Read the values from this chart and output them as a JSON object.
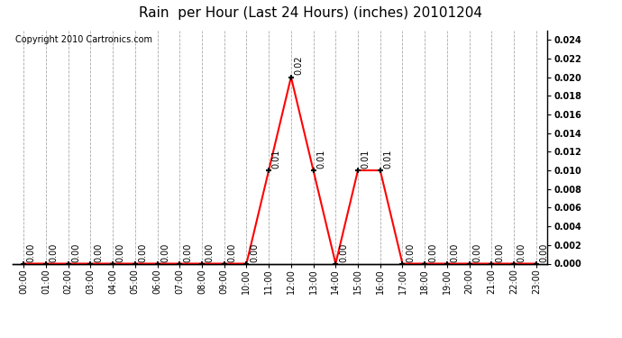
{
  "title": "Rain  per Hour (Last 24 Hours) (inches) 20101204",
  "copyright_text": "Copyright 2010 Cartronics.com",
  "hours": [
    0,
    1,
    2,
    3,
    4,
    5,
    6,
    7,
    8,
    9,
    10,
    11,
    12,
    13,
    14,
    15,
    16,
    17,
    18,
    19,
    20,
    21,
    22,
    23
  ],
  "values": [
    0.0,
    0.0,
    0.0,
    0.0,
    0.0,
    0.0,
    0.0,
    0.0,
    0.0,
    0.0,
    0.0,
    0.01,
    0.02,
    0.01,
    0.0,
    0.01,
    0.01,
    0.0,
    0.0,
    0.0,
    0.0,
    0.0,
    0.0,
    0.0
  ],
  "zero_labels": [
    0,
    1,
    2,
    3,
    4,
    5,
    6,
    7,
    8,
    9,
    10,
    14,
    17,
    18,
    19,
    20,
    21,
    22,
    23
  ],
  "annotated_points": [
    {
      "hour": 11,
      "value": 0.01,
      "label": "0.01"
    },
    {
      "hour": 12,
      "value": 0.02,
      "label": "0.02"
    },
    {
      "hour": 13,
      "value": 0.01,
      "label": "0.01"
    },
    {
      "hour": 15,
      "value": 0.01,
      "label": "0.01"
    },
    {
      "hour": 16,
      "value": 0.01,
      "label": "0.01"
    }
  ],
  "line_color": "red",
  "marker": "+",
  "marker_color": "black",
  "ylim": [
    0.0,
    0.025
  ],
  "yticks": [
    0.0,
    0.002,
    0.004,
    0.006,
    0.008,
    0.01,
    0.012,
    0.014,
    0.016,
    0.018,
    0.02,
    0.022,
    0.024
  ],
  "background_color": "white",
  "grid_color": "#aaaaaa",
  "title_fontsize": 11,
  "annotation_fontsize": 7,
  "copyright_fontsize": 7,
  "tick_fontsize": 7,
  "ytick_fontsize": 7
}
